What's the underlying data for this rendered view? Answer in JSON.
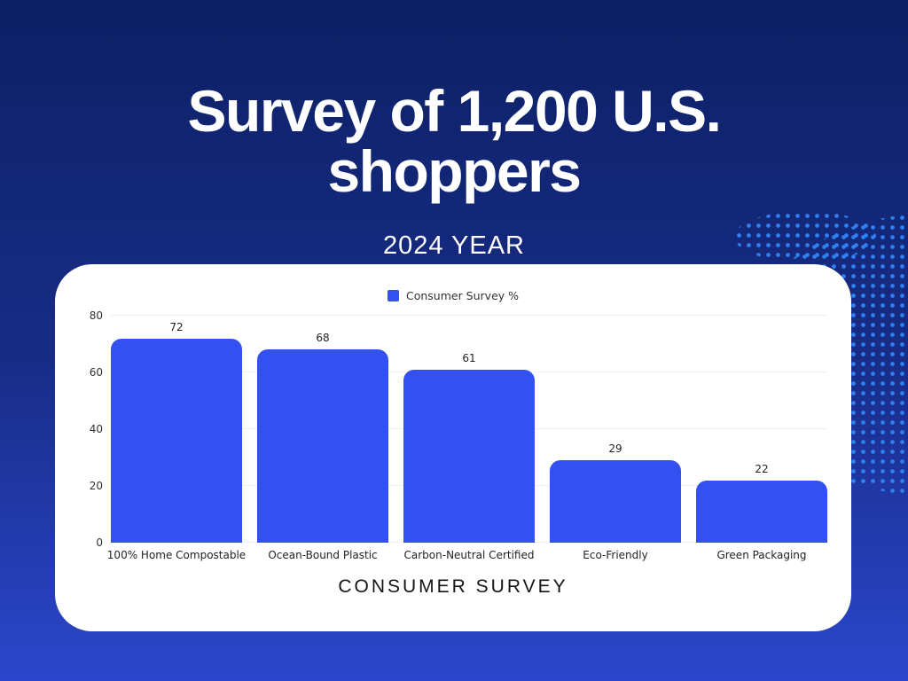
{
  "header": {
    "title_line1": "Survey of 1,200 U.S.",
    "title_line2": "shoppers",
    "subtitle": "2024 YEAR"
  },
  "legend": {
    "label": "Consumer Survey %"
  },
  "chart_data": {
    "type": "bar",
    "title": "Survey of 1,200 U.S. shoppers",
    "subtitle": "2024 YEAR",
    "series_name": "Consumer Survey %",
    "categories": [
      "100% Home Compostable",
      "Ocean-Bound Plastic",
      "Carbon-Neutral Certified",
      "Eco-Friendly",
      "Green Packaging"
    ],
    "values": [
      72,
      68,
      61,
      29,
      22
    ],
    "value_labels_shown": true,
    "xlabel": "CONSUMER SURVEY",
    "ylabel": "",
    "ylim": [
      0,
      80
    ],
    "yticks": [
      0,
      20,
      40,
      60,
      80
    ],
    "grid": true,
    "legend_position": "top-center"
  },
  "colors": {
    "background_top": "#0c2065",
    "background_bottom": "#2b46cb",
    "bar": "#3351f1",
    "dots": "#2f80f0",
    "card": "#ffffff",
    "gridline": "#f0f0f0",
    "title_text": "#ffffff",
    "chart_text": "#222222"
  }
}
